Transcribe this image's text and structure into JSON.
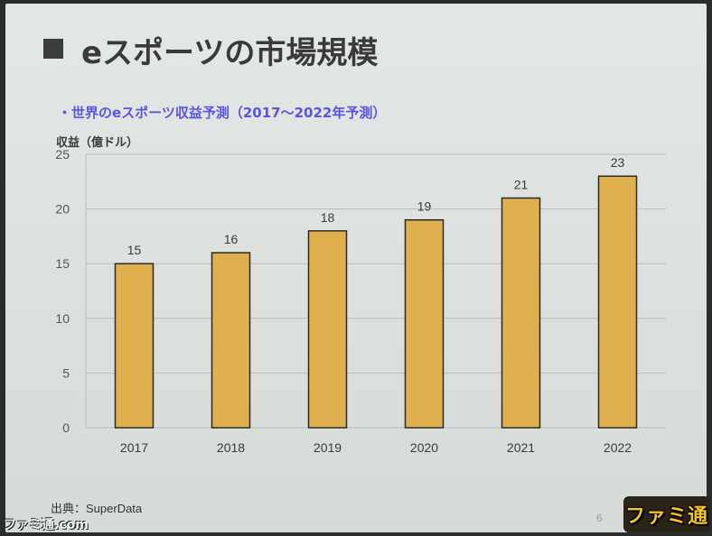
{
  "slide": {
    "title": "eスポーツの市場規模",
    "subtitle": "・世界のeスポーツ収益予測（2017～2022年予測）",
    "y_axis_label": "収益（億ドル）",
    "source": "出典：SuperData",
    "page_number": "6",
    "logo_text": "ファミ通",
    "watermark": "ファミ通.com"
  },
  "colors": {
    "bar_fill": "#e0b04e",
    "bar_stroke": "#2a2a2a",
    "subtitle": "#5a55e0",
    "grid": "#b9bdbb"
  },
  "chart_data": {
    "type": "bar",
    "categories": [
      "2017",
      "2018",
      "2019",
      "2020",
      "2021",
      "2022"
    ],
    "values": [
      15,
      16,
      18,
      19,
      21,
      23
    ],
    "data_labels": [
      "15",
      "16",
      "18",
      "19",
      "21",
      "23"
    ],
    "title": "・世界のeスポーツ収益予測（2017～2022年予測）",
    "xlabel": "",
    "ylabel": "収益（億ドル）",
    "ylim": [
      0,
      25
    ],
    "yticks": [
      0,
      5,
      10,
      15,
      20,
      25
    ],
    "grid": true,
    "legend": "none"
  }
}
